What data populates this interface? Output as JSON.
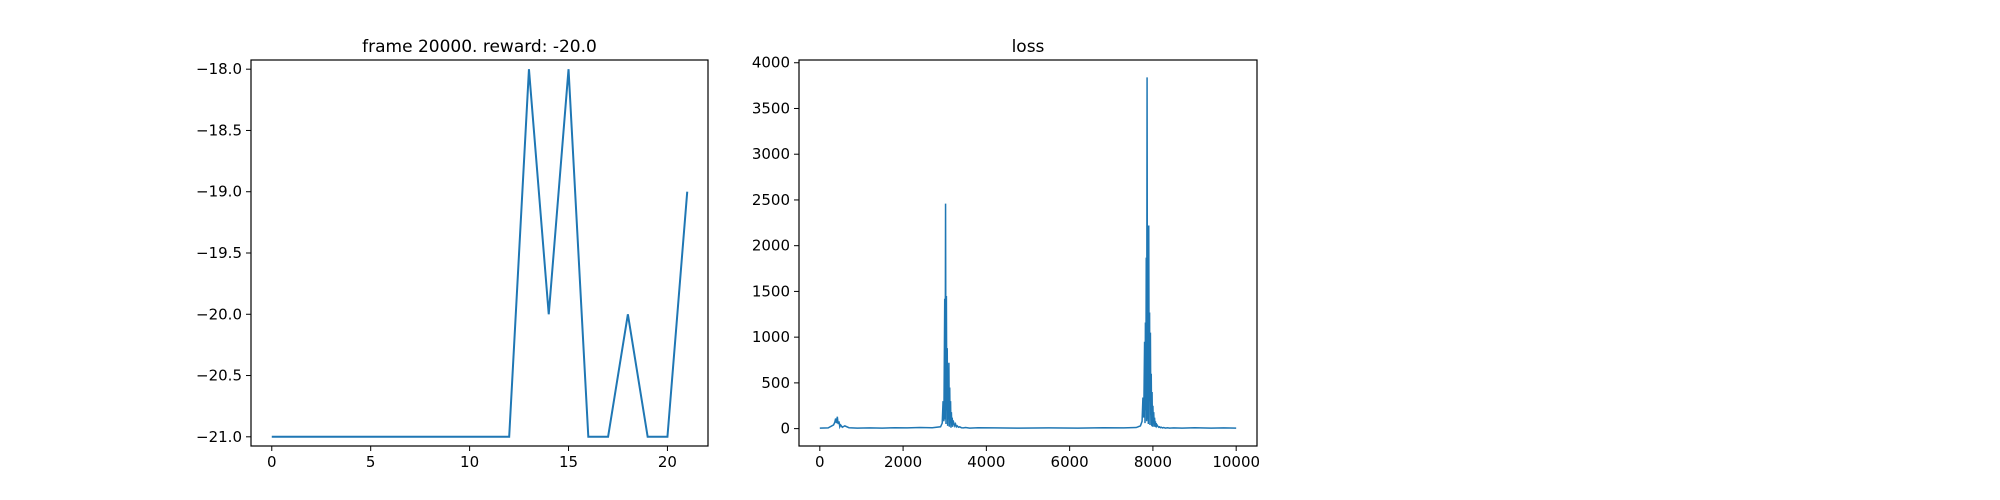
{
  "chart_data": [
    {
      "type": "line",
      "title": "frame 20000. reward: -20.0",
      "xlabel": "",
      "ylabel": "",
      "xlim": [
        -1.05,
        22.05
      ],
      "ylim": [
        -21.075,
        -17.925
      ],
      "xticks": [
        0,
        5,
        10,
        15,
        20
      ],
      "xtick_labels": [
        "0",
        "5",
        "10",
        "15",
        "20"
      ],
      "yticks": [
        -18.0,
        -18.5,
        -19.0,
        -19.5,
        -20.0,
        -20.5,
        -21.0
      ],
      "ytick_labels": [
        "−18.0",
        "−18.5",
        "−19.0",
        "−19.5",
        "−20.0",
        "−20.5",
        "−21.0"
      ],
      "grid": false,
      "color": "#1f77b4",
      "series": [
        {
          "x": [
            0,
            1,
            2,
            3,
            4,
            5,
            6,
            7,
            8,
            9,
            10,
            11,
            12,
            13,
            14,
            15,
            16,
            17,
            18,
            19,
            20,
            21
          ],
          "y": [
            -21,
            -21,
            -21,
            -21,
            -21,
            -21,
            -21,
            -21,
            -21,
            -21,
            -21,
            -21,
            -21,
            -18,
            -20,
            -18,
            -21,
            -21,
            -20,
            -21,
            -21,
            -19
          ]
        }
      ]
    },
    {
      "type": "line",
      "title": "loss",
      "xlabel": "",
      "ylabel": "",
      "xlim": [
        -500,
        10500
      ],
      "ylim": [
        -190,
        4030
      ],
      "xticks": [
        0,
        2000,
        4000,
        6000,
        8000,
        10000
      ],
      "xtick_labels": [
        "0",
        "2000",
        "4000",
        "6000",
        "8000",
        "10000"
      ],
      "yticks": [
        0,
        500,
        1000,
        1500,
        2000,
        2500,
        3000,
        3500,
        4000
      ],
      "ytick_labels": [
        "0",
        "500",
        "1000",
        "1500",
        "2000",
        "2500",
        "3000",
        "3500",
        "4000"
      ],
      "grid": false,
      "color": "#1f77b4",
      "series": [
        {
          "x": [
            0,
            200,
            330,
            360,
            380,
            400,
            420,
            440,
            460,
            480,
            500,
            540,
            600,
            700,
            900,
            1200,
            1500,
            1800,
            2100,
            2400,
            2700,
            2900,
            2940,
            2960,
            2980,
            3000,
            3010,
            3020,
            3030,
            3040,
            3050,
            3060,
            3070,
            3080,
            3090,
            3100,
            3110,
            3120,
            3130,
            3140,
            3150,
            3160,
            3170,
            3180,
            3190,
            3200,
            3220,
            3240,
            3260,
            3280,
            3300,
            3330,
            3360,
            3400,
            3450,
            3500,
            3600,
            3800,
            4200,
            4800,
            5500,
            6200,
            6800,
            7300,
            7600,
            7700,
            7740,
            7760,
            7780,
            7800,
            7810,
            7820,
            7830,
            7840,
            7850,
            7860,
            7870,
            7880,
            7890,
            7900,
            7910,
            7920,
            7930,
            7940,
            7950,
            7960,
            7970,
            7980,
            7990,
            8000,
            8010,
            8020,
            8030,
            8040,
            8050,
            8060,
            8070,
            8080,
            8090,
            8100,
            8120,
            8140,
            8160,
            8180,
            8200,
            8230,
            8260,
            8300,
            8350,
            8400,
            8500,
            8700,
            9000,
            9400,
            9700,
            10000
          ],
          "y": [
            5,
            8,
            40,
            70,
            110,
            60,
            130,
            50,
            80,
            20,
            40,
            15,
            30,
            10,
            5,
            8,
            6,
            10,
            8,
            12,
            10,
            20,
            60,
            300,
            80,
            1420,
            100,
            2460,
            50,
            1450,
            200,
            880,
            30,
            600,
            100,
            720,
            20,
            450,
            60,
            300,
            10,
            180,
            40,
            120,
            20,
            90,
            60,
            30,
            50,
            20,
            30,
            15,
            20,
            10,
            8,
            12,
            6,
            10,
            8,
            5,
            8,
            6,
            10,
            8,
            12,
            30,
            80,
            340,
            120,
            950,
            60,
            1160,
            200,
            1870,
            80,
            3840,
            100,
            2200,
            50,
            2220,
            300,
            1270,
            40,
            1050,
            150,
            600,
            30,
            400,
            20,
            250,
            60,
            180,
            20,
            120,
            40,
            80,
            15,
            60,
            30,
            40,
            25,
            15,
            20,
            10,
            15,
            8,
            12,
            6,
            10,
            5,
            8,
            6,
            10,
            5,
            8,
            5
          ]
        }
      ]
    }
  ]
}
